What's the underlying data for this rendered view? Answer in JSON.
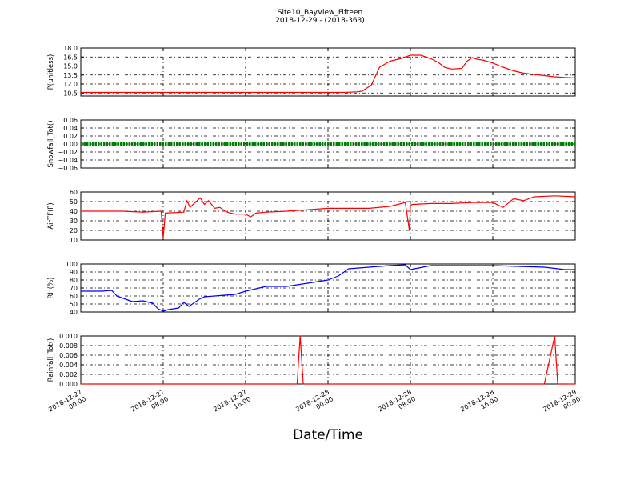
{
  "figure": {
    "title": "Site10_BayView_Fifteen",
    "subtitle": "2018-12-29 - (2018-363)",
    "xlabel": "Date/Time"
  },
  "chart_data": [
    {
      "type": "line",
      "ylabel": "P(unitless)",
      "ylim": [
        10,
        18
      ],
      "yticks": [
        "18.0",
        "16.5",
        "15.0",
        "13.5",
        "12.0",
        "10.5"
      ],
      "ytick_values": [
        18.0,
        16.5,
        15.0,
        13.5,
        12.0,
        10.5
      ],
      "xlim_hours": [
        0,
        48
      ],
      "grid": true,
      "color": "#ff0000",
      "x_hours": [
        0,
        8,
        16,
        23,
        25.5,
        26.8,
        27.3,
        28.2,
        29,
        30,
        31,
        32,
        33,
        34,
        34.7,
        35.3,
        36,
        37,
        37.5,
        38,
        38.5,
        39,
        40,
        41,
        42,
        43,
        44,
        45,
        46,
        47,
        48
      ],
      "values": [
        10.6,
        10.6,
        10.6,
        10.6,
        10.6,
        10.7,
        10.8,
        11.8,
        14.8,
        15.8,
        16.2,
        16.8,
        16.8,
        16.2,
        15.6,
        14.8,
        14.5,
        14.6,
        15.8,
        16.4,
        16.1,
        16.0,
        15.5,
        14.8,
        14.2,
        13.8,
        13.6,
        13.4,
        13.2,
        13.1,
        13.0
      ]
    },
    {
      "type": "line",
      "ylabel": "Snowfall_Tot()",
      "ylim": [
        -0.06,
        0.06
      ],
      "yticks": [
        "0.06",
        "0.04",
        "0.02",
        "0.00",
        "−0.02",
        "−0.04",
        "−0.06"
      ],
      "ytick_values": [
        0.06,
        0.04,
        0.02,
        0,
        -0.02,
        -0.04,
        -0.06
      ],
      "xlim_hours": [
        0,
        48
      ],
      "grid": true,
      "color": "#008000",
      "marker": "dots",
      "x_hours": [
        0,
        48
      ],
      "values": [
        0,
        0
      ]
    },
    {
      "type": "line",
      "ylabel": "AirTF(F)",
      "ylim": [
        10,
        60
      ],
      "yticks": [
        "60",
        "50",
        "40",
        "30",
        "20",
        "10"
      ],
      "ytick_values": [
        60,
        50,
        40,
        30,
        20,
        10
      ],
      "xlim_hours": [
        0,
        48
      ],
      "grid": true,
      "color": "#ff0000",
      "x_hours": [
        0,
        2,
        4,
        6,
        7.8,
        8,
        8.2,
        10,
        10.3,
        10.6,
        11,
        11.6,
        12,
        12.4,
        13,
        13.5,
        14,
        14.5,
        15,
        16,
        16.5,
        17,
        18,
        20,
        24,
        28,
        30,
        31.5,
        31.9,
        32,
        32.1,
        34,
        36,
        38,
        40,
        41,
        42,
        43,
        44,
        46,
        48
      ],
      "values": [
        40,
        40,
        40,
        39,
        40,
        12,
        38,
        39,
        51,
        44,
        48,
        54,
        47,
        51,
        43,
        44,
        40,
        38,
        37,
        37,
        34,
        38,
        39,
        40,
        43,
        43,
        45,
        49,
        20,
        45,
        47,
        48,
        48,
        49,
        49,
        44,
        53,
        51,
        55,
        56,
        55
      ]
    },
    {
      "type": "line",
      "ylabel": "RH(%)",
      "ylim": [
        40,
        100
      ],
      "yticks": [
        "100",
        "90",
        "80",
        "70",
        "60",
        "50",
        "40"
      ],
      "ytick_values": [
        100,
        90,
        80,
        70,
        60,
        50,
        40
      ],
      "xlim_hours": [
        0,
        48
      ],
      "grid": true,
      "color": "#0000ff",
      "x_hours": [
        0,
        2,
        3,
        3.5,
        5,
        6,
        7,
        7.5,
        8,
        8.5,
        9.5,
        10,
        10.5,
        11.5,
        12,
        13,
        15,
        16,
        18,
        20,
        22,
        24,
        25,
        26,
        28,
        30,
        31.5,
        32,
        34,
        36,
        40,
        45,
        47,
        48
      ],
      "values": [
        66,
        66,
        67,
        60,
        53,
        54,
        51,
        44,
        41,
        43,
        45,
        52,
        47,
        56,
        59,
        60,
        62,
        66,
        72,
        72,
        76,
        80,
        85,
        94,
        96,
        98,
        99,
        93,
        98,
        98,
        98,
        96,
        93,
        93
      ]
    },
    {
      "type": "line",
      "ylabel": "Rainfall_Tot()",
      "ylim": [
        0,
        0.01
      ],
      "yticks": [
        "0.010",
        "0.008",
        "0.006",
        "0.004",
        "0.002",
        "0.000"
      ],
      "ytick_values": [
        0.01,
        0.008,
        0.006,
        0.004,
        0.002,
        0
      ],
      "xlim_hours": [
        0,
        48
      ],
      "grid": true,
      "color": "#ff0000",
      "x_hours": [
        0,
        21,
        21.3,
        21.6,
        45,
        46,
        46.3,
        48
      ],
      "values": [
        0,
        0,
        0.01,
        0,
        0,
        0.01,
        0,
        0
      ]
    }
  ],
  "x_ticks": [
    {
      "hour": 0,
      "line1": "2018-12-27",
      "line2": "00:00"
    },
    {
      "hour": 8,
      "line1": "2018-12-27",
      "line2": "08:00"
    },
    {
      "hour": 16,
      "line1": "2018-12-27",
      "line2": "16:00"
    },
    {
      "hour": 24,
      "line1": "2018-12-28",
      "line2": "00:00"
    },
    {
      "hour": 32,
      "line1": "2018-12-28",
      "line2": "08:00"
    },
    {
      "hour": 40,
      "line1": "2018-12-28",
      "line2": "16:00"
    },
    {
      "hour": 48,
      "line1": "2018-12-29",
      "line2": "00:00"
    }
  ]
}
